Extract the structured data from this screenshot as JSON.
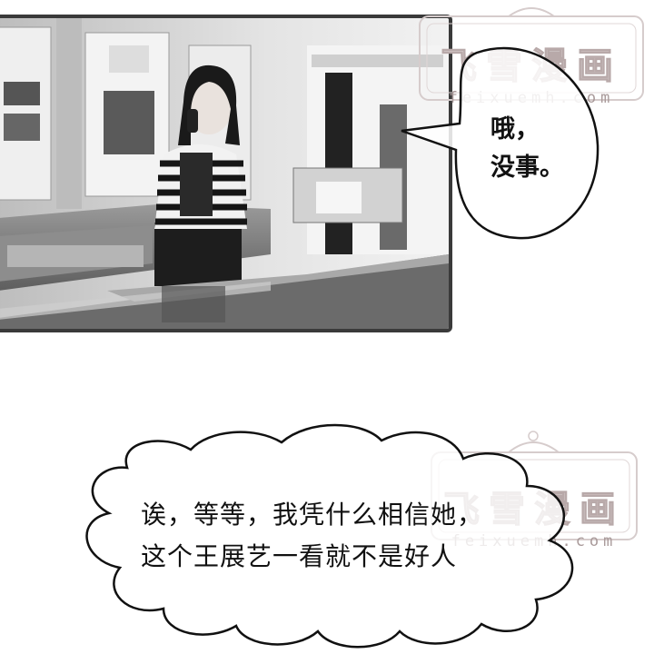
{
  "speech_bubble": {
    "lines": [
      "哦，",
      "没事。"
    ]
  },
  "thought_bubble": {
    "lines": [
      "诶，等等，我凭什么相信她，",
      "这个王展艺一看就不是好人"
    ]
  },
  "watermark": {
    "title": "飞雪漫画",
    "url": "feixuemh.com"
  }
}
